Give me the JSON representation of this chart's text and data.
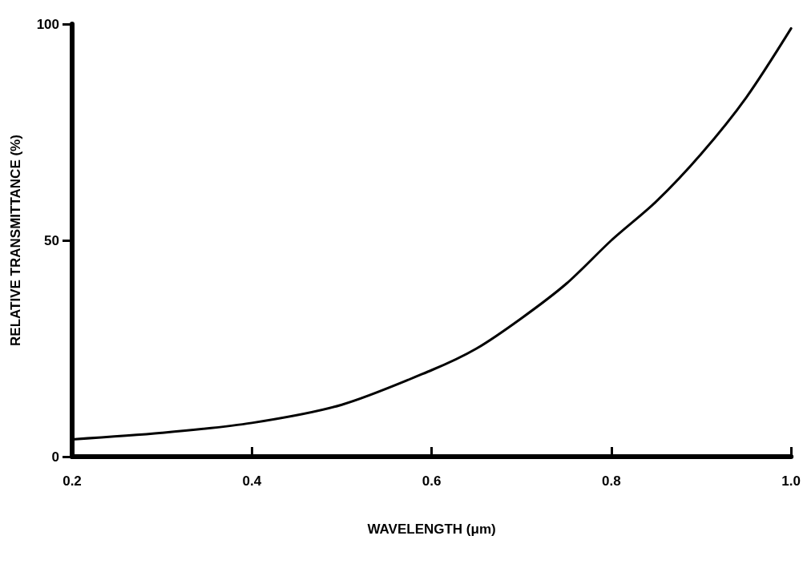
{
  "chart_data": {
    "type": "line",
    "xlabel": "WAVELENGTH (μm)",
    "ylabel": "RELATIVE TRANSMITTANCE (%)",
    "x": [
      0.2,
      0.3,
      0.4,
      0.5,
      0.6,
      0.65,
      0.7,
      0.75,
      0.8,
      0.85,
      0.9,
      0.95,
      1.0
    ],
    "series": [
      {
        "color": "#000000",
        "values": [
          4,
          5.5,
          7.8,
          12,
          20,
          25,
          32,
          40,
          50,
          59,
          70,
          83,
          99
        ]
      }
    ],
    "xlim": [
      0.2,
      1.0
    ],
    "xticks": [
      {
        "value": 0.2,
        "label": "0.2"
      },
      {
        "value": 0.4,
        "label": "0.4"
      },
      {
        "value": 0.6,
        "label": "0.6"
      },
      {
        "value": 0.8,
        "label": "0.8"
      },
      {
        "value": 1.0,
        "label": "1.0"
      }
    ],
    "ylim": [
      0,
      100
    ],
    "yticks": [
      0,
      50,
      100
    ],
    "grid": false,
    "marker": "none",
    "line_style": "solid"
  }
}
